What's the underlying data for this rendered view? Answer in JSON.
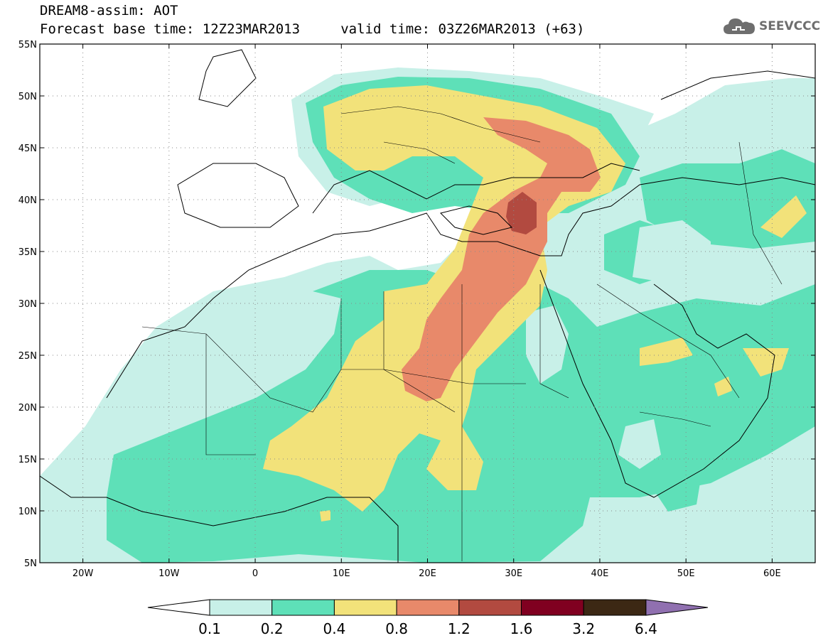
{
  "header": {
    "line1": "DREAM8-assim: AOT",
    "line2": "Forecast base time: 12Z23MAR2013     valid time: 03Z26MAR2013 (+63)"
  },
  "logo": {
    "text": "SEEVCCC",
    "icon": "cloud-icon",
    "color": "#6e6e6e"
  },
  "map": {
    "lon_range": [
      -25,
      65
    ],
    "lat_range": [
      5,
      55
    ],
    "lat_labels": [
      "55N",
      "50N",
      "45N",
      "40N",
      "35N",
      "30N",
      "25N",
      "20N",
      "15N",
      "10N",
      "5N"
    ],
    "lon_labels": [
      "20W",
      "10W",
      "0",
      "10E",
      "20E",
      "30E",
      "40E",
      "50E",
      "60E"
    ],
    "grid": "dotted"
  },
  "colorbar": {
    "labels": [
      "0.1",
      "0.2",
      "0.4",
      "0.8",
      "1.2",
      "1.6",
      "3.2",
      "6.4"
    ],
    "colors": [
      "#c8f0e8",
      "#5ee0b8",
      "#f2e27a",
      "#e8896a",
      "#b24a40",
      "#800020",
      "#3c2814",
      "#9070b0"
    ],
    "under_color": "#ffffff"
  }
}
